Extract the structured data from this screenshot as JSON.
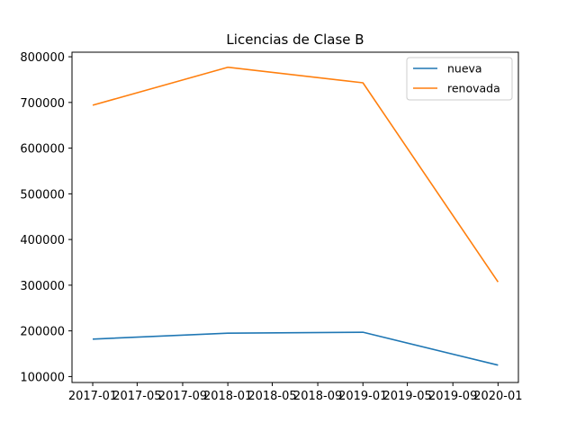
{
  "chart_data": {
    "type": "line",
    "title": "Licencias de Clase B",
    "xlabel": "",
    "ylabel": "",
    "x": [
      "2017-01-01",
      "2018-01-01",
      "2019-01-01",
      "2020-01-01"
    ],
    "x_ticks": [
      "2017-01",
      "2017-05",
      "2017-09",
      "2018-01",
      "2018-05",
      "2018-09",
      "2019-01",
      "2019-05",
      "2019-09",
      "2020-01"
    ],
    "x_tick_dates": [
      "2017-01-01",
      "2017-05-01",
      "2017-09-01",
      "2018-01-01",
      "2018-05-01",
      "2018-09-01",
      "2019-01-01",
      "2019-05-01",
      "2019-09-01",
      "2020-01-01"
    ],
    "y_ticks": [
      100000,
      200000,
      300000,
      400000,
      500000,
      600000,
      700000,
      800000
    ],
    "ylim": [
      87000,
      810000
    ],
    "xlim": [
      "2016-11-06",
      "2020-02-25"
    ],
    "grid": false,
    "legend": "top-right",
    "series": [
      {
        "name": "nueva",
        "color": "#1f77b4",
        "values": [
          182000,
          195000,
          197000,
          125000
        ]
      },
      {
        "name": "renovada",
        "color": "#ff7f0e",
        "values": [
          694000,
          777000,
          743000,
          307000
        ]
      }
    ]
  }
}
